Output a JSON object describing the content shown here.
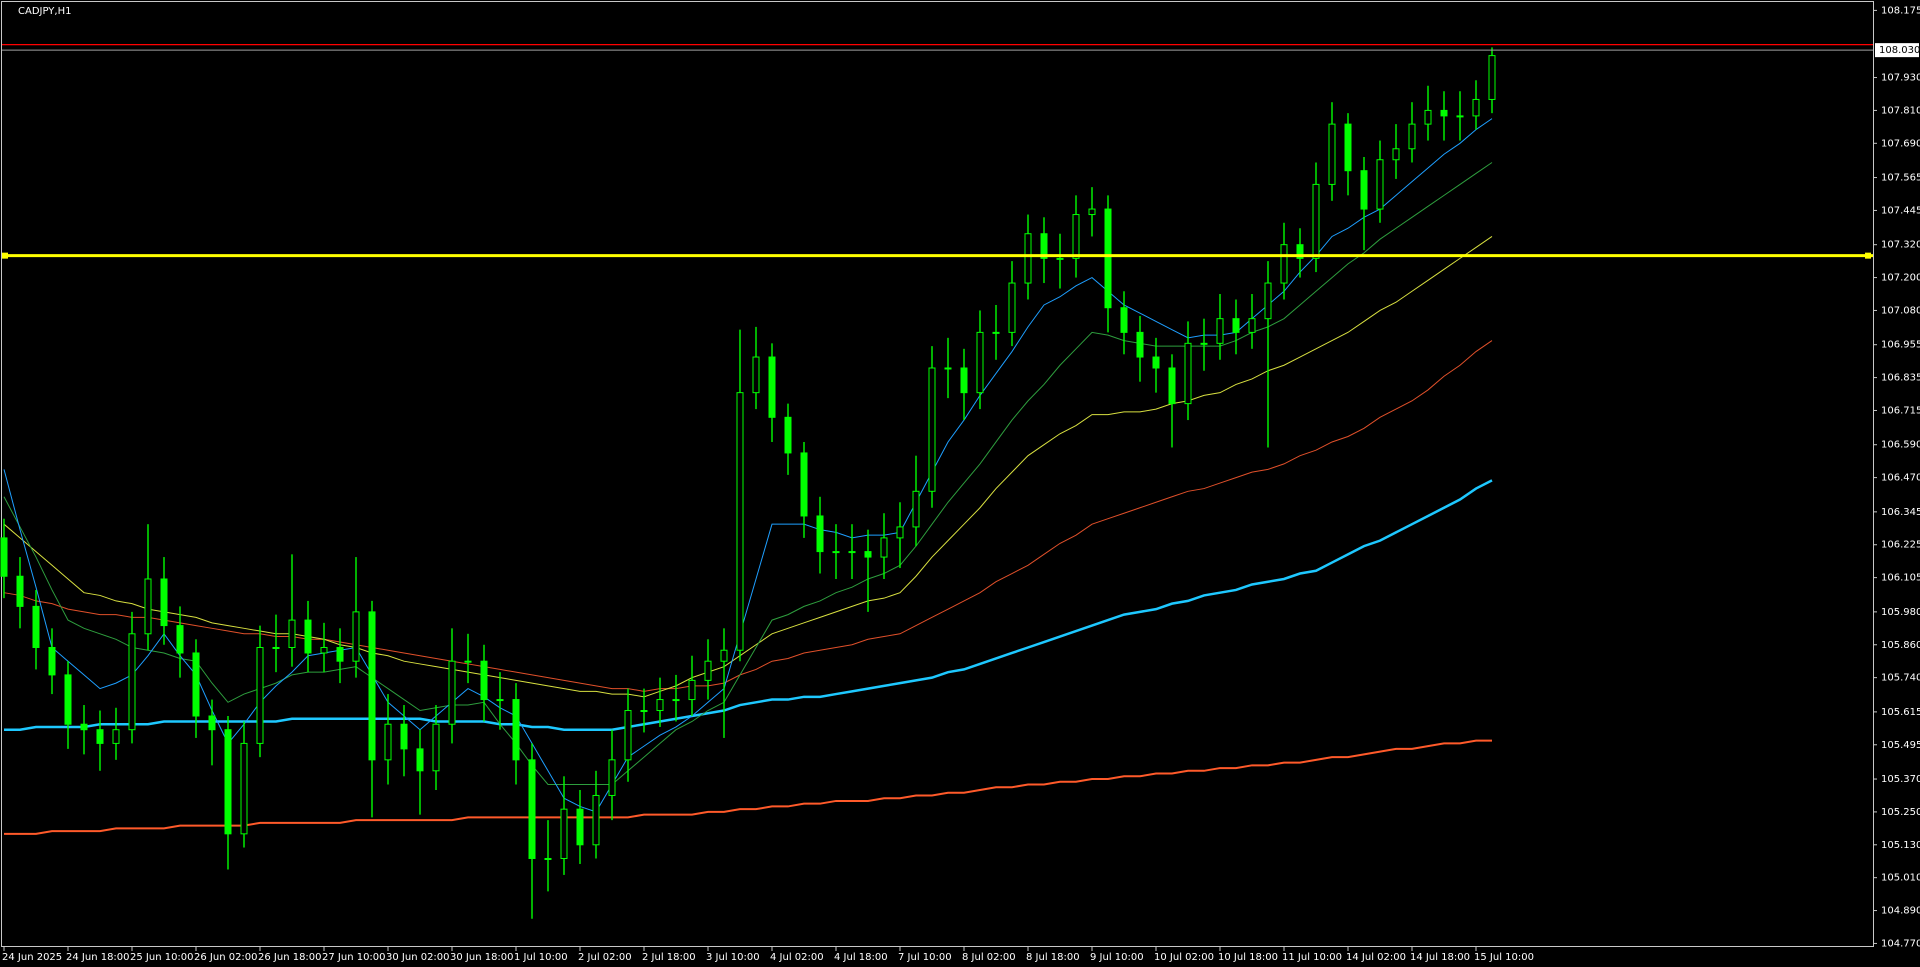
{
  "chart_data": {
    "type": "candlestick",
    "title": "CADJPY,H1",
    "categories": [
      "24 Jun 2025",
      null,
      null,
      null,
      "24 Jun 18:00",
      null,
      null,
      null,
      "25 Jun 10:00",
      null,
      null,
      null,
      "26 Jun 02:00",
      null,
      null,
      null,
      "26 Jun 18:00",
      null,
      null,
      null,
      "27 Jun 10:00",
      null,
      null,
      null,
      "30 Jun 02:00",
      null,
      null,
      null,
      "30 Jun 18:00",
      null,
      null,
      null,
      "1 Jul 10:00",
      null,
      null,
      null,
      "2 Jul 02:00",
      null,
      null,
      null,
      "2 Jul 18:00",
      null,
      null,
      null,
      "3 Jul 10:00",
      null,
      null,
      null,
      "4 Jul 02:00",
      null,
      null,
      null,
      "4 Jul 18:00",
      null,
      null,
      null,
      "7 Jul 10:00",
      null,
      null,
      null,
      "8 Jul 02:00",
      null,
      null,
      null,
      "8 Jul 18:00",
      null,
      null,
      null,
      "9 Jul 10:00",
      null,
      null,
      null,
      "10 Jul 02:00",
      null,
      null,
      null,
      "10 Jul 18:00",
      null,
      null,
      null,
      "11 Jul 10:00",
      null,
      null,
      null,
      "14 Jul 02:00",
      null,
      null,
      null,
      "14 Jul 18:00",
      null,
      null,
      null,
      "15 Jul 10:00",
      null
    ],
    "candles": {
      "color": "#00ff00",
      "open": [
        106.25,
        106.11,
        106.0,
        105.85,
        105.75,
        105.57,
        105.55,
        105.5,
        105.55,
        105.9,
        106.1,
        105.93,
        105.83,
        105.6,
        105.55,
        105.17,
        105.5,
        105.85,
        105.85,
        105.95,
        105.83,
        105.85,
        105.8,
        105.98,
        105.44,
        105.57,
        105.48,
        105.4,
        105.57,
        105.8,
        105.8,
        105.66,
        105.66,
        105.44,
        105.08,
        105.08,
        105.26,
        105.13,
        105.31,
        105.44,
        105.62,
        105.62,
        105.66,
        105.66,
        105.73,
        105.8,
        105.84,
        106.78,
        106.91,
        106.69,
        106.56,
        106.33,
        106.2,
        106.2,
        106.2,
        106.18,
        106.25,
        106.29,
        106.42,
        106.87,
        106.87,
        106.78,
        107.0,
        107.0,
        107.18,
        107.36,
        107.27,
        107.27,
        107.43,
        107.45,
        107.09,
        107.0,
        106.91,
        106.87,
        106.74,
        106.96,
        106.96,
        107.05,
        107.0,
        107.05,
        107.18,
        107.32,
        107.27,
        107.54,
        107.76,
        107.59,
        107.45,
        107.63,
        107.67,
        107.76,
        107.81,
        107.79,
        107.79,
        107.85
      ],
      "high": [
        106.32,
        106.18,
        106.06,
        105.92,
        105.8,
        105.64,
        105.62,
        105.63,
        105.98,
        106.3,
        106.18,
        106.0,
        105.88,
        105.66,
        105.6,
        105.58,
        105.93,
        105.97,
        106.19,
        106.02,
        105.94,
        105.92,
        106.18,
        106.02,
        105.68,
        105.64,
        105.55,
        105.64,
        105.92,
        105.9,
        105.86,
        105.76,
        105.72,
        105.5,
        105.22,
        105.38,
        105.33,
        105.4,
        105.55,
        105.7,
        105.7,
        105.74,
        105.75,
        105.82,
        105.88,
        105.92,
        107.01,
        107.02,
        106.96,
        106.74,
        106.6,
        106.4,
        106.3,
        106.3,
        106.28,
        106.34,
        106.38,
        106.55,
        106.95,
        106.98,
        106.94,
        107.08,
        107.1,
        107.26,
        107.43,
        107.42,
        107.36,
        107.5,
        107.53,
        107.5,
        107.15,
        107.06,
        106.98,
        106.92,
        107.04,
        107.05,
        107.14,
        107.12,
        107.14,
        107.26,
        107.4,
        107.38,
        107.62,
        107.84,
        107.8,
        107.64,
        107.7,
        107.76,
        107.84,
        107.9,
        107.88,
        107.88,
        107.92,
        108.04
      ],
      "low": [
        106.03,
        105.92,
        105.77,
        105.68,
        105.48,
        105.46,
        105.4,
        105.44,
        105.5,
        105.84,
        105.86,
        105.74,
        105.52,
        105.42,
        105.04,
        105.12,
        105.45,
        105.76,
        105.78,
        105.76,
        105.76,
        105.72,
        105.74,
        105.23,
        105.35,
        105.38,
        105.24,
        105.33,
        105.5,
        105.72,
        105.58,
        105.55,
        105.35,
        104.86,
        104.96,
        105.02,
        105.06,
        105.08,
        105.22,
        105.36,
        105.54,
        105.56,
        105.58,
        105.6,
        105.66,
        105.52,
        105.8,
        106.72,
        106.6,
        106.48,
        106.25,
        106.12,
        106.1,
        106.1,
        105.98,
        106.1,
        106.14,
        106.22,
        106.36,
        106.76,
        106.68,
        106.72,
        106.9,
        106.95,
        107.12,
        107.18,
        107.16,
        107.2,
        107.35,
        107.0,
        106.92,
        106.82,
        106.78,
        106.58,
        106.68,
        106.86,
        106.9,
        106.92,
        106.94,
        106.58,
        107.12,
        107.2,
        107.22,
        107.48,
        107.5,
        107.3,
        107.4,
        107.56,
        107.62,
        107.7,
        107.7,
        107.7,
        107.74,
        107.8
      ],
      "close": [
        106.11,
        106.0,
        105.85,
        105.75,
        105.57,
        105.55,
        105.5,
        105.55,
        105.9,
        106.1,
        105.93,
        105.83,
        105.6,
        105.55,
        105.17,
        105.5,
        105.85,
        105.85,
        105.95,
        105.83,
        105.85,
        105.8,
        105.98,
        105.44,
        105.57,
        105.48,
        105.4,
        105.57,
        105.8,
        105.8,
        105.66,
        105.66,
        105.44,
        105.08,
        105.08,
        105.26,
        105.13,
        105.31,
        105.44,
        105.62,
        105.62,
        105.66,
        105.66,
        105.73,
        105.8,
        105.84,
        106.78,
        106.91,
        106.69,
        106.56,
        106.33,
        106.2,
        106.2,
        106.2,
        106.18,
        106.25,
        106.29,
        106.42,
        106.87,
        106.87,
        106.78,
        107.0,
        107.0,
        107.18,
        107.36,
        107.27,
        107.27,
        107.43,
        107.45,
        107.09,
        107.0,
        106.91,
        106.87,
        106.74,
        106.96,
        106.96,
        107.05,
        107.0,
        107.05,
        107.18,
        107.32,
        107.27,
        107.54,
        107.76,
        107.59,
        107.45,
        107.63,
        107.67,
        107.76,
        107.81,
        107.79,
        107.79,
        107.85,
        108.01
      ]
    },
    "series": [
      {
        "color": "#ff5a2a",
        "width": 2,
        "values": [
          105.17,
          105.17,
          105.17,
          105.18,
          105.18,
          105.18,
          105.18,
          105.19,
          105.19,
          105.19,
          105.19,
          105.2,
          105.2,
          105.2,
          105.2,
          105.2,
          105.21,
          105.21,
          105.21,
          105.21,
          105.21,
          105.21,
          105.22,
          105.22,
          105.22,
          105.22,
          105.22,
          105.22,
          105.22,
          105.23,
          105.23,
          105.23,
          105.23,
          105.23,
          105.23,
          105.23,
          105.23,
          105.23,
          105.23,
          105.23,
          105.24,
          105.24,
          105.24,
          105.24,
          105.25,
          105.25,
          105.26,
          105.26,
          105.27,
          105.27,
          105.28,
          105.28,
          105.29,
          105.29,
          105.29,
          105.3,
          105.3,
          105.31,
          105.31,
          105.32,
          105.32,
          105.33,
          105.34,
          105.34,
          105.35,
          105.35,
          105.36,
          105.36,
          105.37,
          105.37,
          105.38,
          105.38,
          105.39,
          105.39,
          105.4,
          105.4,
          105.41,
          105.41,
          105.42,
          105.42,
          105.43,
          105.43,
          105.44,
          105.45,
          105.45,
          105.46,
          105.47,
          105.48,
          105.48,
          105.49,
          105.5,
          105.5,
          105.51,
          105.51
        ]
      },
      {
        "color": "#1ec8ff",
        "width": 2.5,
        "values": [
          105.55,
          105.55,
          105.56,
          105.56,
          105.56,
          105.56,
          105.57,
          105.57,
          105.57,
          105.57,
          105.58,
          105.58,
          105.58,
          105.58,
          105.58,
          105.58,
          105.58,
          105.58,
          105.59,
          105.59,
          105.59,
          105.59,
          105.59,
          105.59,
          105.59,
          105.59,
          105.59,
          105.58,
          105.58,
          105.58,
          105.58,
          105.57,
          105.57,
          105.56,
          105.56,
          105.55,
          105.55,
          105.55,
          105.55,
          105.56,
          105.57,
          105.58,
          105.59,
          105.6,
          105.61,
          105.62,
          105.64,
          105.65,
          105.66,
          105.66,
          105.67,
          105.67,
          105.68,
          105.69,
          105.7,
          105.71,
          105.72,
          105.73,
          105.74,
          105.76,
          105.77,
          105.79,
          105.81,
          105.83,
          105.85,
          105.87,
          105.89,
          105.91,
          105.93,
          105.95,
          105.97,
          105.98,
          105.99,
          106.01,
          106.02,
          106.04,
          106.05,
          106.06,
          106.08,
          106.09,
          106.1,
          106.12,
          106.13,
          106.16,
          106.19,
          106.22,
          106.24,
          106.27,
          106.3,
          106.33,
          106.36,
          106.39,
          106.43,
          106.46
        ]
      },
      {
        "color": "#e0502a",
        "width": 1,
        "values": [
          106.05,
          106.04,
          106.02,
          106.01,
          105.99,
          105.98,
          105.97,
          105.97,
          105.96,
          105.96,
          105.95,
          105.94,
          105.93,
          105.92,
          105.91,
          105.9,
          105.9,
          105.89,
          105.89,
          105.88,
          105.88,
          105.87,
          105.86,
          105.85,
          105.84,
          105.83,
          105.82,
          105.81,
          105.8,
          105.79,
          105.78,
          105.77,
          105.76,
          105.75,
          105.74,
          105.73,
          105.72,
          105.71,
          105.7,
          105.7,
          105.69,
          105.7,
          105.7,
          105.71,
          105.71,
          105.72,
          105.75,
          105.77,
          105.8,
          105.81,
          105.83,
          105.84,
          105.85,
          105.86,
          105.88,
          105.89,
          105.9,
          105.93,
          105.96,
          105.99,
          106.02,
          106.05,
          106.09,
          106.12,
          106.15,
          106.19,
          106.23,
          106.26,
          106.3,
          106.32,
          106.34,
          106.36,
          106.38,
          106.4,
          106.42,
          106.43,
          106.45,
          106.47,
          106.49,
          106.5,
          106.52,
          106.55,
          106.57,
          106.6,
          106.62,
          106.65,
          106.69,
          106.72,
          106.75,
          106.79,
          106.84,
          106.88,
          106.93,
          106.97
        ]
      },
      {
        "color": "#d8e040",
        "width": 1,
        "values": [
          106.3,
          106.25,
          106.2,
          106.15,
          106.1,
          106.05,
          106.04,
          106.02,
          106.01,
          105.99,
          105.98,
          105.97,
          105.96,
          105.94,
          105.93,
          105.92,
          105.91,
          105.9,
          105.9,
          105.89,
          105.88,
          105.86,
          105.85,
          105.83,
          105.82,
          105.8,
          105.79,
          105.78,
          105.77,
          105.76,
          105.75,
          105.74,
          105.73,
          105.72,
          105.71,
          105.7,
          105.69,
          105.69,
          105.68,
          105.68,
          105.67,
          105.69,
          105.71,
          105.74,
          105.76,
          105.78,
          105.82,
          105.86,
          105.9,
          105.92,
          105.94,
          105.96,
          105.98,
          106.0,
          106.02,
          106.03,
          106.05,
          106.11,
          106.18,
          106.24,
          106.3,
          106.36,
          106.43,
          106.49,
          106.55,
          106.59,
          106.63,
          106.66,
          106.7,
          106.7,
          106.71,
          106.71,
          106.72,
          106.74,
          106.75,
          106.77,
          106.78,
          106.81,
          106.83,
          106.86,
          106.88,
          106.91,
          106.94,
          106.97,
          107.0,
          107.04,
          107.08,
          107.11,
          107.15,
          107.19,
          107.23,
          107.27,
          107.31,
          107.35
        ]
      },
      {
        "color": "#2e9e3e",
        "width": 1,
        "values": [
          106.4,
          106.29,
          106.18,
          106.06,
          105.95,
          105.92,
          105.9,
          105.88,
          105.85,
          105.84,
          105.83,
          105.81,
          105.8,
          105.72,
          105.65,
          105.68,
          105.7,
          105.72,
          105.75,
          105.76,
          105.76,
          105.77,
          105.78,
          105.74,
          105.7,
          105.66,
          105.62,
          105.63,
          105.64,
          105.64,
          105.65,
          105.57,
          105.5,
          105.42,
          105.35,
          105.35,
          105.35,
          105.35,
          105.35,
          105.4,
          105.45,
          105.5,
          105.55,
          105.58,
          105.62,
          105.65,
          105.75,
          105.85,
          105.95,
          105.97,
          106.0,
          106.02,
          106.05,
          106.07,
          106.1,
          106.12,
          106.15,
          106.22,
          106.3,
          106.38,
          106.45,
          106.52,
          106.6,
          106.68,
          106.75,
          106.81,
          106.88,
          106.94,
          107.0,
          106.99,
          106.97,
          106.96,
          106.95,
          106.95,
          106.95,
          106.95,
          106.95,
          106.97,
          107.0,
          107.02,
          107.05,
          107.1,
          107.15,
          107.2,
          107.25,
          107.29,
          107.34,
          107.38,
          107.42,
          107.46,
          107.5,
          107.54,
          107.58,
          107.62
        ]
      },
      {
        "color": "#1e9fff",
        "width": 1,
        "values": [
          106.5,
          106.28,
          106.07,
          105.85,
          105.8,
          105.75,
          105.7,
          105.72,
          105.75,
          105.82,
          105.9,
          105.82,
          105.75,
          105.62,
          105.5,
          105.57,
          105.65,
          105.71,
          105.76,
          105.82,
          105.83,
          105.84,
          105.85,
          105.75,
          105.65,
          105.6,
          105.55,
          105.6,
          105.65,
          105.7,
          105.67,
          105.63,
          105.6,
          105.5,
          105.4,
          105.3,
          105.27,
          105.25,
          105.35,
          105.45,
          105.49,
          105.53,
          105.56,
          105.6,
          105.65,
          105.7,
          105.9,
          106.1,
          106.3,
          106.3,
          106.3,
          106.28,
          106.27,
          106.25,
          106.26,
          106.26,
          106.27,
          106.38,
          106.49,
          106.6,
          106.68,
          106.77,
          106.85,
          106.93,
          107.02,
          107.1,
          107.13,
          107.17,
          107.2,
          107.15,
          107.1,
          107.07,
          107.04,
          107.01,
          106.98,
          106.99,
          106.99,
          107.0,
          107.05,
          107.1,
          107.15,
          107.22,
          107.28,
          107.35,
          107.38,
          107.42,
          107.45,
          107.5,
          107.55,
          107.6,
          107.65,
          107.69,
          107.74,
          107.78
        ]
      }
    ],
    "lines": [
      {
        "value": 108.05,
        "color": "#ff0000"
      },
      {
        "value": 107.28,
        "color": "#ffff00"
      }
    ],
    "bid": {
      "value": 108.03,
      "label": "108.030"
    },
    "ylim": [
      104.757,
      108.202
    ],
    "yticks": [
      108.175,
      {
        "value": 107.93,
        "label": "107.930"
      },
      {
        "value": 107.81,
        "label": "107.810"
      },
      {
        "value": 107.69,
        "label": "107.690"
      },
      107.565,
      107.445,
      {
        "value": 107.32,
        "label": "107.320"
      },
      {
        "value": 107.2,
        "label": "107.200"
      },
      {
        "value": 107.08,
        "label": "107.080"
      },
      106.955,
      106.835,
      106.715,
      {
        "value": 106.59,
        "label": "106.590"
      },
      {
        "value": 106.47,
        "label": "106.470"
      },
      106.345,
      106.225,
      106.105,
      {
        "value": 105.98,
        "label": "105.980"
      },
      {
        "value": 105.86,
        "label": "105.860"
      },
      {
        "value": 105.74,
        "label": "105.740"
      },
      105.615,
      105.495,
      {
        "value": 105.37,
        "label": "105.370"
      },
      {
        "value": 105.25,
        "label": "105.250"
      },
      {
        "value": 105.13,
        "label": "105.130"
      },
      {
        "value": 105.01,
        "label": "105.010"
      },
      {
        "value": 104.89,
        "label": "104.890"
      },
      {
        "value": 104.77,
        "label": "104.770"
      }
    ],
    "background": "#000000"
  }
}
